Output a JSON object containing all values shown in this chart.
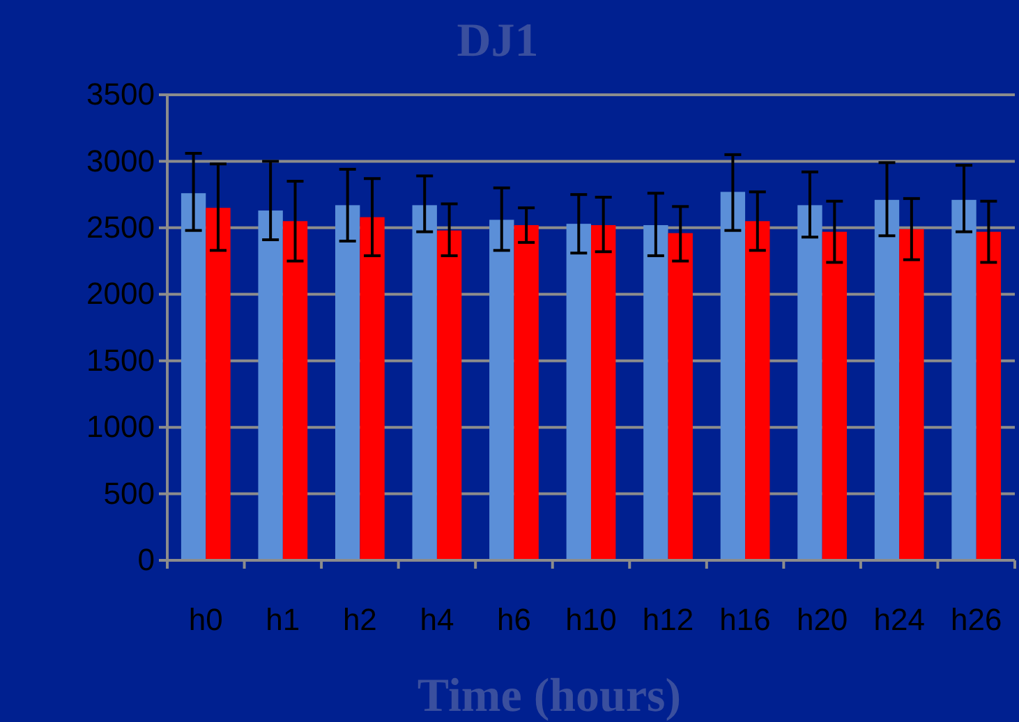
{
  "chart_data": {
    "type": "bar",
    "title": "DJ1",
    "xlabel": "Time (hours)",
    "categories": [
      "h0",
      "h1",
      "h2",
      "h4",
      "h6",
      "h10",
      "h12",
      "h16",
      "h20",
      "h24",
      "h26"
    ],
    "series": [
      {
        "color": "#5b8fd8",
        "values": [
          2760,
          2630,
          2670,
          2670,
          2560,
          2530,
          2520,
          2770,
          2670,
          2710,
          2710
        ],
        "errors": [
          [
            2480,
            3060
          ],
          [
            2410,
            3000
          ],
          [
            2400,
            2940
          ],
          [
            2470,
            2890
          ],
          [
            2330,
            2800
          ],
          [
            2310,
            2750
          ],
          [
            2290,
            2760
          ],
          [
            2480,
            3050
          ],
          [
            2430,
            2920
          ],
          [
            2440,
            2990
          ],
          [
            2470,
            2970
          ]
        ]
      },
      {
        "color": "#ff0000",
        "values": [
          2650,
          2550,
          2580,
          2480,
          2520,
          2520,
          2460,
          2550,
          2470,
          2490,
          2470
        ],
        "errors": [
          [
            2330,
            2980
          ],
          [
            2250,
            2850
          ],
          [
            2290,
            2870
          ],
          [
            2290,
            2680
          ],
          [
            2390,
            2650
          ],
          [
            2320,
            2730
          ],
          [
            2250,
            2660
          ],
          [
            2330,
            2770
          ],
          [
            2240,
            2700
          ],
          [
            2260,
            2720
          ],
          [
            2240,
            2700
          ]
        ]
      }
    ],
    "ylim": [
      0,
      3500
    ],
    "yticks": [
      0,
      500,
      1000,
      1500,
      2000,
      2500,
      3000,
      3500
    ],
    "grid": "y"
  }
}
